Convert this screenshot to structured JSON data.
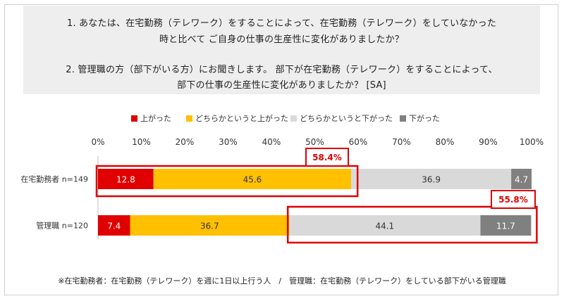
{
  "questions": {
    "q1_line1": "1. あなたは、在宅勤務（テレワーク）をすることによって、在宅勤務（テレワーク）をしていなかった",
    "q1_line2": "時と比べて ご自身の仕事の生産性に変化がありましたか？",
    "q2_line1": "2. 管理職の方（部下がいる方）にお聞きします。 部下が在宅勤務（テレワーク）をすることによって、",
    "q2_line2": "部下の仕事の生産性に変化がありましたか？ [SA]"
  },
  "footnote": "※在宅勤務者：在宅勤務（テレワーク）を週に1日以上行う人　/　管理職：在宅勤務（テレワーク）をしている部下がいる管理職",
  "chart_data": {
    "type": "bar",
    "orientation": "horizontal",
    "stacked": true,
    "xlim": [
      0,
      100
    ],
    "x_ticks": [
      "0%",
      "10%",
      "20%",
      "30%",
      "40%",
      "50%",
      "60%",
      "70%",
      "80%",
      "90%",
      "100%"
    ],
    "categories": [
      "在宅勤務者 n=149",
      "管理職 n=120"
    ],
    "series": [
      {
        "name": "上がった",
        "color": "#e00000",
        "values": [
          12.8,
          7.4
        ]
      },
      {
        "name": "どちらかというと上がった",
        "color": "#ffc000",
        "values": [
          45.6,
          36.7
        ]
      },
      {
        "name": "どちらかというと下がった",
        "color": "#d9d9d9",
        "values": [
          36.9,
          44.1
        ]
      },
      {
        "name": "下がった",
        "color": "#808080",
        "values": [
          4.7,
          11.7
        ]
      }
    ],
    "annotations": [
      "58.4%",
      "55.8%"
    ],
    "legend_position": "top"
  }
}
